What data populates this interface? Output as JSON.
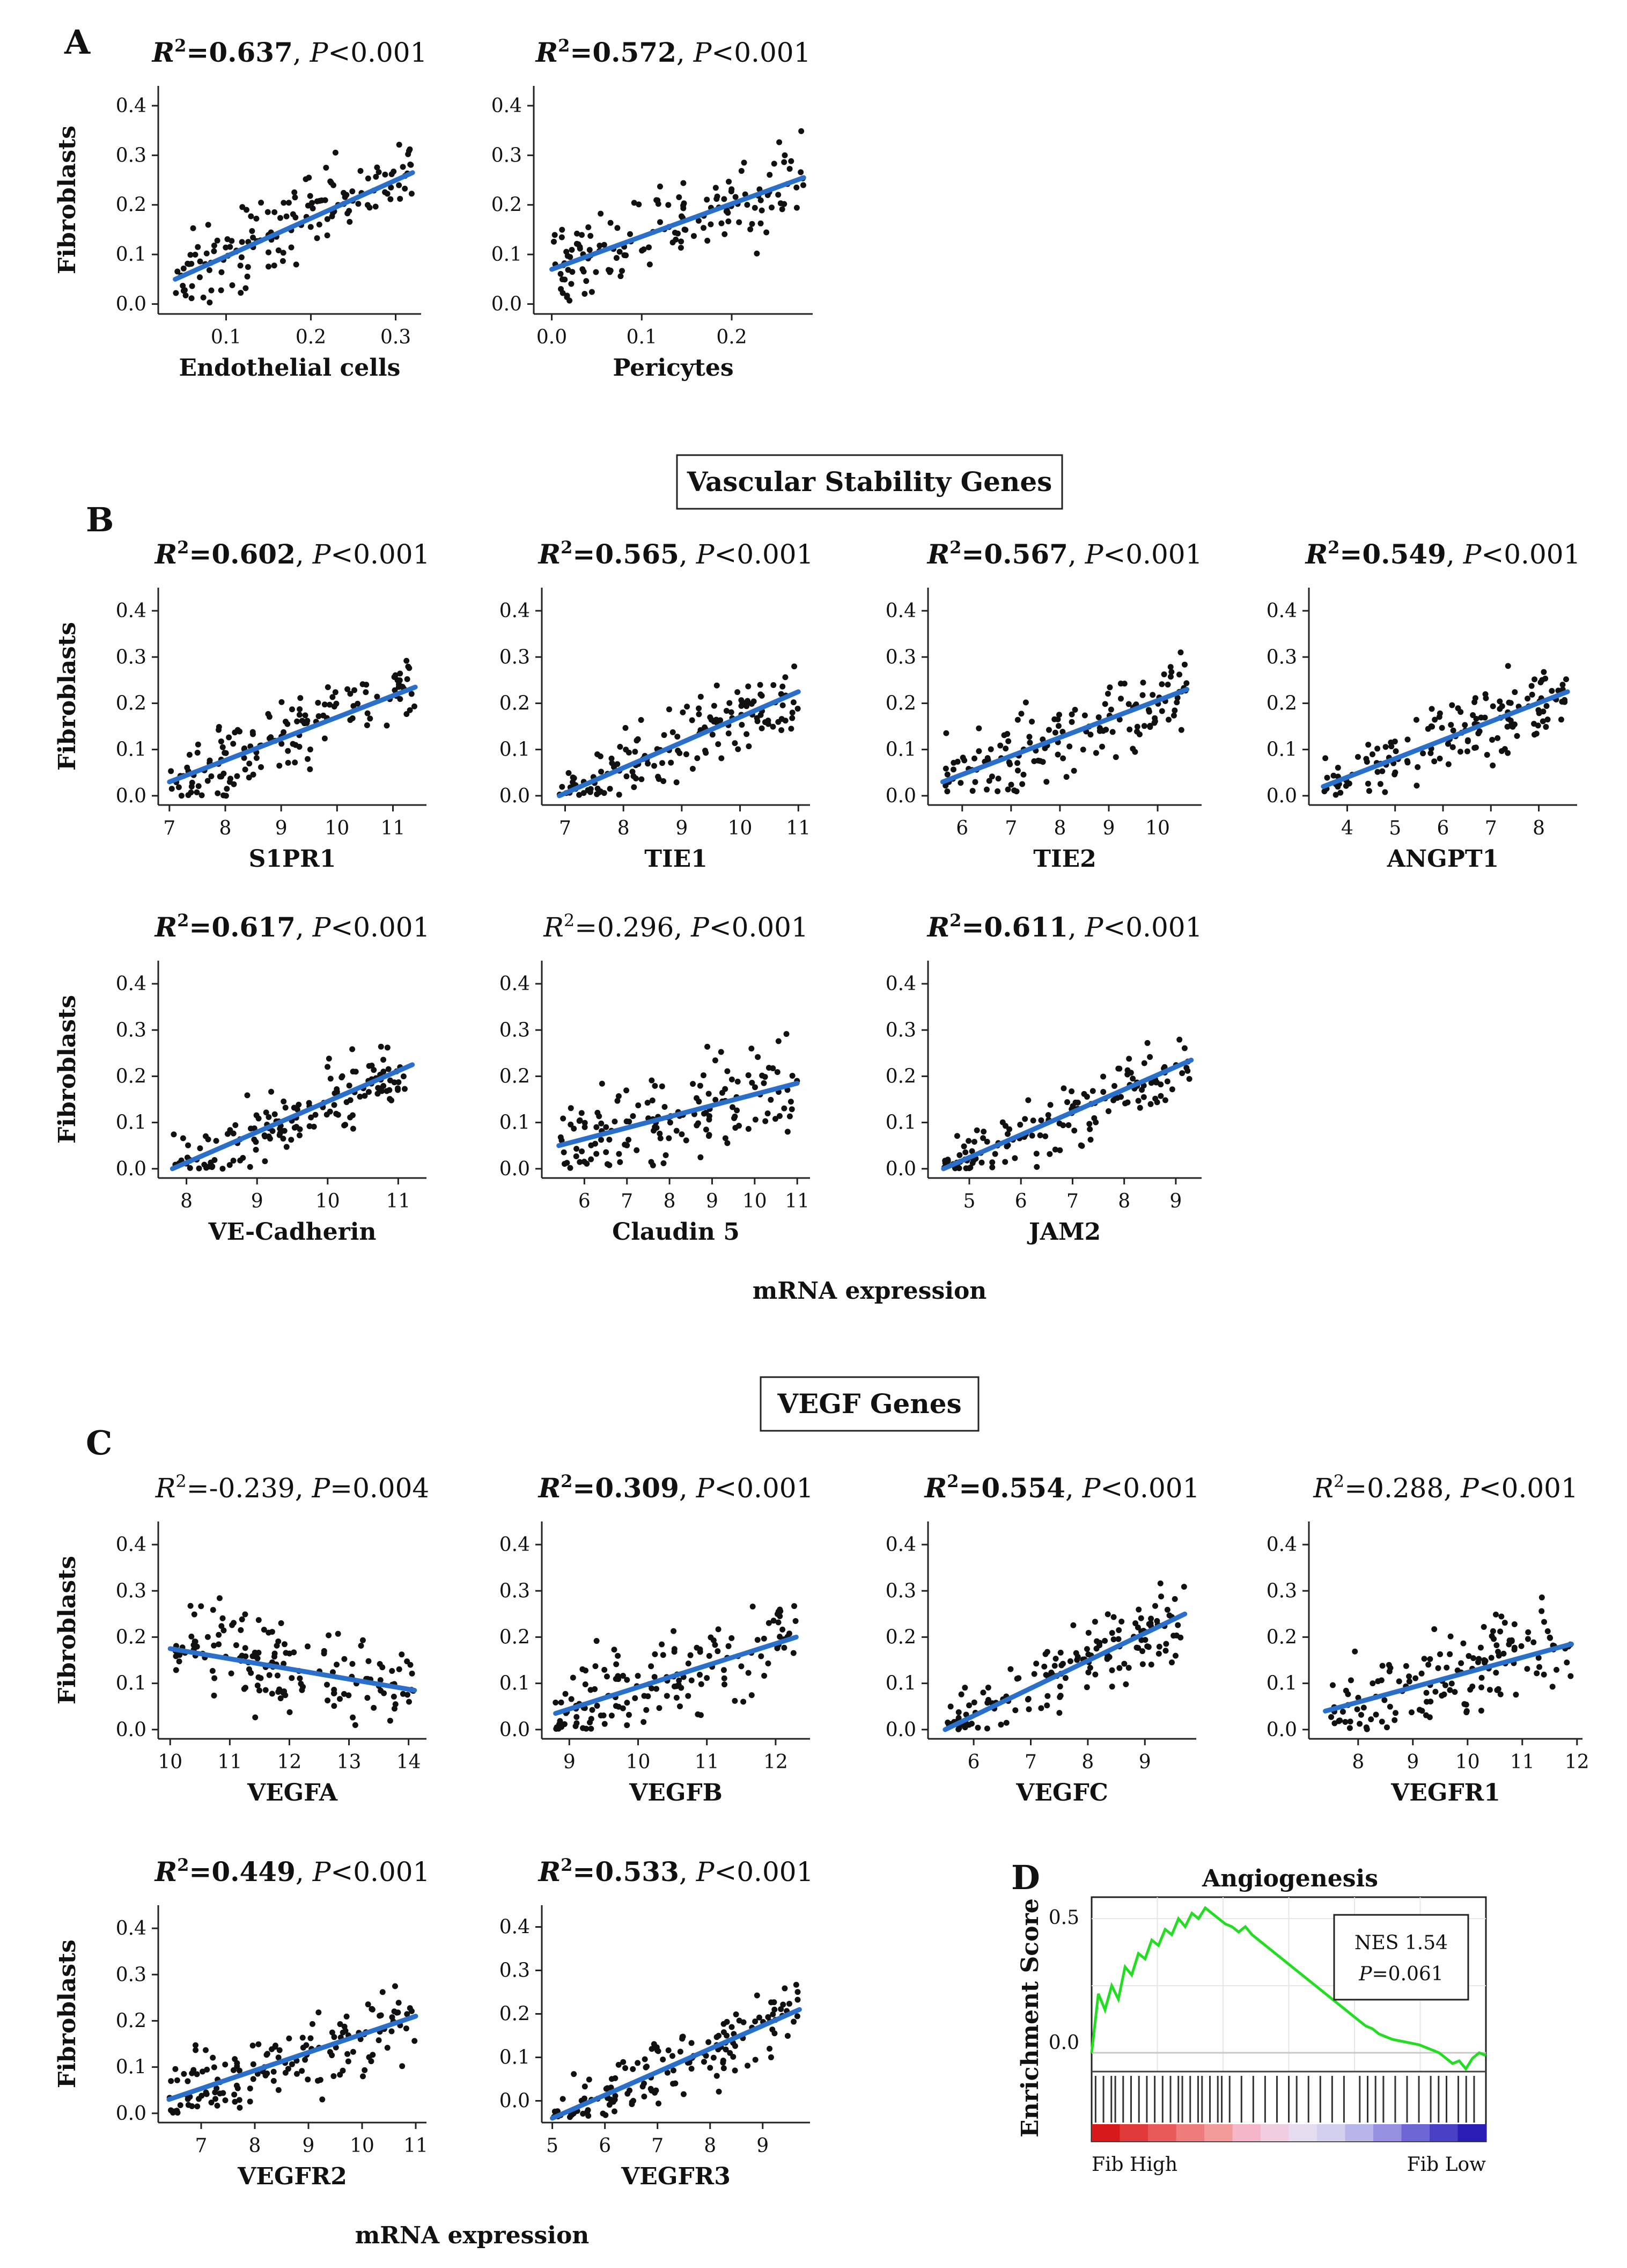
{
  "panel_labels": {
    "a": "A",
    "b": "B",
    "c": "C",
    "d": "D"
  },
  "section_titles": {
    "b": "Vascular Stability Genes",
    "c": "VEGF Genes"
  },
  "common_labels": {
    "y": "Fibroblasts",
    "x": "mRNA expression"
  },
  "chart_data": [
    {
      "id": "p-endothelial",
      "panel": "A",
      "type": "scatter",
      "title": {
        "prefix": "R",
        "sup": "2",
        "eq": "=",
        "r2": "0.637",
        "bold": true,
        "p_op": "<",
        "p": "0.001"
      },
      "xlabel": "Endothelial cells",
      "ylabel": "Fibroblasts",
      "xlim": [
        0.02,
        0.33
      ],
      "ylim": [
        -0.02,
        0.44
      ],
      "xticks": [
        0.1,
        0.2,
        0.3
      ],
      "yticks": [
        0.0,
        0.1,
        0.2,
        0.3,
        0.4
      ],
      "xticklabels": [
        "0.1",
        "0.2",
        "0.3"
      ],
      "yticklabels": [
        "0.0",
        "0.1",
        "0.2",
        "0.3",
        "0.4"
      ],
      "fit": [
        [
          0.04,
          0.05
        ],
        [
          0.32,
          0.265
        ]
      ],
      "xrange": [
        0.04,
        0.32
      ],
      "yrange": [
        0.0,
        0.44
      ],
      "n": 150,
      "spread": 0.05,
      "seed": 11
    },
    {
      "id": "p-pericytes",
      "panel": "A",
      "type": "scatter",
      "title": {
        "prefix": "R",
        "sup": "2",
        "eq": "=",
        "r2": "0.572",
        "bold": true,
        "p_op": "<",
        "p": "0.001"
      },
      "xlabel": "Pericytes",
      "ylabel": "",
      "xlim": [
        -0.02,
        0.29
      ],
      "ylim": [
        -0.02,
        0.44
      ],
      "xticks": [
        0.0,
        0.1,
        0.2
      ],
      "yticks": [
        0.0,
        0.1,
        0.2,
        0.3,
        0.4
      ],
      "xticklabels": [
        "0.0",
        "0.1",
        "0.2"
      ],
      "yticklabels": [
        "0.0",
        "0.1",
        "0.2",
        "0.3",
        "0.4"
      ],
      "fit": [
        [
          0.0,
          0.07
        ],
        [
          0.28,
          0.255
        ]
      ],
      "xrange": [
        0.0,
        0.28
      ],
      "yrange": [
        0.0,
        0.44
      ],
      "n": 150,
      "spread": 0.055,
      "seed": 23
    },
    {
      "id": "p-s1pr1",
      "panel": "B",
      "type": "scatter",
      "title": {
        "prefix": "R",
        "sup": "2",
        "eq": "=",
        "r2": "0.602",
        "bold": true,
        "p_op": "<",
        "p": "0.001"
      },
      "xlabel": "S1PR1",
      "ylabel": "Fibroblasts",
      "xlim": [
        6.8,
        11.6
      ],
      "ylim": [
        -0.02,
        0.45
      ],
      "xticks": [
        7,
        8,
        9,
        10,
        11
      ],
      "yticks": [
        0.0,
        0.1,
        0.2,
        0.3,
        0.4
      ],
      "xticklabels": [
        "7",
        "8",
        "9",
        "10",
        "11"
      ],
      "yticklabels": [
        "0.0",
        "0.1",
        "0.2",
        "0.3",
        "0.4"
      ],
      "fit": [
        [
          7.0,
          0.03
        ],
        [
          11.4,
          0.235
        ]
      ],
      "xrange": [
        7.0,
        11.4
      ],
      "yrange": [
        0.0,
        0.44
      ],
      "n": 150,
      "spread": 0.05,
      "seed": 31
    },
    {
      "id": "p-tie1",
      "panel": "B",
      "type": "scatter",
      "title": {
        "prefix": "R",
        "sup": "2",
        "eq": "=",
        "r2": "0.565",
        "bold": true,
        "p_op": "<",
        "p": "0.001"
      },
      "xlabel": "TIE1",
      "ylabel": "",
      "xlim": [
        6.6,
        11.2
      ],
      "ylim": [
        -0.02,
        0.45
      ],
      "xticks": [
        7,
        8,
        9,
        10,
        11
      ],
      "yticks": [
        0.0,
        0.1,
        0.2,
        0.3,
        0.4
      ],
      "xticklabels": [
        "7",
        "8",
        "9",
        "10",
        "11"
      ],
      "yticklabels": [
        "0.0",
        "0.1",
        "0.2",
        "0.3",
        "0.4"
      ],
      "fit": [
        [
          6.9,
          0.0
        ],
        [
          11.0,
          0.225
        ]
      ],
      "xrange": [
        6.9,
        11.0
      ],
      "yrange": [
        0.0,
        0.44
      ],
      "n": 150,
      "spread": 0.05,
      "seed": 37
    },
    {
      "id": "p-tie2",
      "panel": "B",
      "type": "scatter",
      "title": {
        "prefix": "R",
        "sup": "2",
        "eq": "=",
        "r2": "0.567",
        "bold": true,
        "p_op": "<",
        "p": "0.001"
      },
      "xlabel": "TIE2",
      "ylabel": "",
      "xlim": [
        5.3,
        10.9
      ],
      "ylim": [
        -0.02,
        0.45
      ],
      "xticks": [
        6,
        7,
        8,
        9,
        10
      ],
      "yticks": [
        0.0,
        0.1,
        0.2,
        0.3,
        0.4
      ],
      "xticklabels": [
        "6",
        "7",
        "8",
        "9",
        "10"
      ],
      "yticklabels": [
        "0.0",
        "0.1",
        "0.2",
        "0.3",
        "0.4"
      ],
      "fit": [
        [
          5.6,
          0.03
        ],
        [
          10.6,
          0.23
        ]
      ],
      "xrange": [
        5.6,
        10.6
      ],
      "yrange": [
        0.0,
        0.44
      ],
      "n": 150,
      "spread": 0.055,
      "seed": 41
    },
    {
      "id": "p-angpt1",
      "panel": "B",
      "type": "scatter",
      "title": {
        "prefix": "R",
        "sup": "2",
        "eq": "=",
        "r2": "0.549",
        "bold": true,
        "p_op": "<",
        "p": "0.001"
      },
      "xlabel": "ANGPT1",
      "ylabel": "",
      "xlim": [
        3.2,
        8.8
      ],
      "ylim": [
        -0.02,
        0.45
      ],
      "xticks": [
        4,
        5,
        6,
        7,
        8
      ],
      "yticks": [
        0.0,
        0.1,
        0.2,
        0.3,
        0.4
      ],
      "xticklabels": [
        "4",
        "5",
        "6",
        "7",
        "8"
      ],
      "yticklabels": [
        "0.0",
        "0.1",
        "0.2",
        "0.3",
        "0.4"
      ],
      "fit": [
        [
          3.5,
          0.02
        ],
        [
          8.6,
          0.225
        ]
      ],
      "xrange": [
        3.5,
        8.6
      ],
      "yrange": [
        0.0,
        0.44
      ],
      "n": 150,
      "spread": 0.05,
      "seed": 43
    },
    {
      "id": "p-vecadherin",
      "panel": "B",
      "type": "scatter",
      "title": {
        "prefix": "R",
        "sup": "2",
        "eq": "=",
        "r2": "0.617",
        "bold": true,
        "p_op": "<",
        "p": "0.001"
      },
      "xlabel": "VE-Cadherin",
      "ylabel": "Fibroblasts",
      "xlim": [
        7.6,
        11.4
      ],
      "ylim": [
        -0.02,
        0.45
      ],
      "xticks": [
        8,
        9,
        10,
        11
      ],
      "yticks": [
        0.0,
        0.1,
        0.2,
        0.3,
        0.4
      ],
      "xticklabels": [
        "8",
        "9",
        "10",
        "11"
      ],
      "yticklabels": [
        "0.0",
        "0.1",
        "0.2",
        "0.3",
        "0.4"
      ],
      "fit": [
        [
          7.8,
          0.0
        ],
        [
          11.2,
          0.225
        ]
      ],
      "xrange": [
        7.8,
        11.2
      ],
      "yrange": [
        0.0,
        0.44
      ],
      "n": 150,
      "spread": 0.045,
      "seed": 47
    },
    {
      "id": "p-claudin5",
      "panel": "B",
      "type": "scatter",
      "title": {
        "prefix": "R",
        "sup": "2",
        "eq": "=",
        "r2": "0.296",
        "bold": false,
        "p_op": "<",
        "p": "0.001"
      },
      "xlabel": "Claudin 5",
      "ylabel": "",
      "xlim": [
        5.0,
        11.3
      ],
      "ylim": [
        -0.02,
        0.45
      ],
      "xticks": [
        6,
        7,
        8,
        9,
        10,
        11
      ],
      "yticks": [
        0.0,
        0.1,
        0.2,
        0.3,
        0.4
      ],
      "xticklabels": [
        "6",
        "7",
        "8",
        "9",
        "10",
        "11"
      ],
      "yticklabels": [
        "0.0",
        "0.1",
        "0.2",
        "0.3",
        "0.4"
      ],
      "fit": [
        [
          5.4,
          0.05
        ],
        [
          11.0,
          0.185
        ]
      ],
      "xrange": [
        5.4,
        11.0
      ],
      "yrange": [
        0.0,
        0.44
      ],
      "n": 150,
      "spread": 0.065,
      "seed": 53
    },
    {
      "id": "p-jam2",
      "panel": "B",
      "type": "scatter",
      "title": {
        "prefix": "R",
        "sup": "2",
        "eq": "=",
        "r2": "0.611",
        "bold": true,
        "p_op": "<",
        "p": "0.001"
      },
      "xlabel": "JAM2",
      "ylabel": "",
      "xlim": [
        4.2,
        9.5
      ],
      "ylim": [
        -0.02,
        0.45
      ],
      "xticks": [
        5,
        6,
        7,
        8,
        9
      ],
      "yticks": [
        0.0,
        0.1,
        0.2,
        0.3,
        0.4
      ],
      "xticklabels": [
        "5",
        "6",
        "7",
        "8",
        "9"
      ],
      "yticklabels": [
        "0.0",
        "0.1",
        "0.2",
        "0.3",
        "0.4"
      ],
      "fit": [
        [
          4.5,
          0.0
        ],
        [
          9.3,
          0.235
        ]
      ],
      "xrange": [
        4.5,
        9.3
      ],
      "yrange": [
        0.0,
        0.44
      ],
      "n": 150,
      "spread": 0.045,
      "seed": 59
    },
    {
      "id": "p-vegfa",
      "panel": "C",
      "type": "scatter",
      "title": {
        "prefix": "R",
        "sup": "2",
        "eq": "=",
        "r2": "-0.239",
        "bold": false,
        "p_op": "=",
        "p": "0.004"
      },
      "xlabel": "VEGFA",
      "ylabel": "Fibroblasts",
      "xlim": [
        9.8,
        14.3
      ],
      "ylim": [
        -0.02,
        0.45
      ],
      "xticks": [
        10,
        11,
        12,
        13,
        14
      ],
      "yticks": [
        0.0,
        0.1,
        0.2,
        0.3,
        0.4
      ],
      "xticklabels": [
        "10",
        "11",
        "12",
        "13",
        "14"
      ],
      "yticklabels": [
        "0.0",
        "0.1",
        "0.2",
        "0.3",
        "0.4"
      ],
      "fit": [
        [
          10.0,
          0.175
        ],
        [
          14.1,
          0.085
        ]
      ],
      "xrange": [
        10.0,
        14.1
      ],
      "yrange": [
        0.0,
        0.44
      ],
      "n": 150,
      "spread": 0.06,
      "seed": 61
    },
    {
      "id": "p-vegfb",
      "panel": "C",
      "type": "scatter",
      "title": {
        "prefix": "R",
        "sup": "2",
        "eq": "=",
        "r2": "0.309",
        "bold": true,
        "p_op": "<",
        "p": "0.001"
      },
      "xlabel": "VEGFB",
      "ylabel": "",
      "xlim": [
        8.6,
        12.5
      ],
      "ylim": [
        -0.02,
        0.45
      ],
      "xticks": [
        9,
        10,
        11,
        12
      ],
      "yticks": [
        0.0,
        0.1,
        0.2,
        0.3,
        0.4
      ],
      "xticklabels": [
        "9",
        "10",
        "11",
        "12"
      ],
      "yticklabels": [
        "0.0",
        "0.1",
        "0.2",
        "0.3",
        "0.4"
      ],
      "fit": [
        [
          8.8,
          0.035
        ],
        [
          12.3,
          0.2
        ]
      ],
      "xrange": [
        8.8,
        12.3
      ],
      "yrange": [
        0.0,
        0.44
      ],
      "n": 150,
      "spread": 0.06,
      "seed": 67
    },
    {
      "id": "p-vegfc",
      "panel": "C",
      "type": "scatter",
      "title": {
        "prefix": "R",
        "sup": "2",
        "eq": "=",
        "r2": "0.554",
        "bold": true,
        "p_op": "<",
        "p": "0.001"
      },
      "xlabel": "VEGFC",
      "ylabel": "",
      "xlim": [
        5.2,
        9.9
      ],
      "ylim": [
        -0.02,
        0.45
      ],
      "xticks": [
        6,
        7,
        8,
        9
      ],
      "yticks": [
        0.0,
        0.1,
        0.2,
        0.3,
        0.4
      ],
      "xticklabels": [
        "6",
        "7",
        "8",
        "9"
      ],
      "yticklabels": [
        "0.0",
        "0.1",
        "0.2",
        "0.3",
        "0.4"
      ],
      "fit": [
        [
          5.5,
          0.0
        ],
        [
          9.7,
          0.25
        ]
      ],
      "xrange": [
        5.5,
        9.7
      ],
      "yrange": [
        0.0,
        0.44
      ],
      "n": 150,
      "spread": 0.05,
      "seed": 71
    },
    {
      "id": "p-vegfr1",
      "panel": "C",
      "type": "scatter",
      "title": {
        "prefix": "R",
        "sup": "2",
        "eq": "=",
        "r2": "0.288",
        "bold": false,
        "p_op": "<",
        "p": "0.001"
      },
      "xlabel": "VEGFR1",
      "ylabel": "",
      "xlim": [
        7.1,
        12.1
      ],
      "ylim": [
        -0.02,
        0.45
      ],
      "xticks": [
        8,
        9,
        10,
        11,
        12
      ],
      "yticks": [
        0.0,
        0.1,
        0.2,
        0.3,
        0.4
      ],
      "xticklabels": [
        "8",
        "9",
        "10",
        "11",
        "12"
      ],
      "yticklabels": [
        "0.0",
        "0.1",
        "0.2",
        "0.3",
        "0.4"
      ],
      "fit": [
        [
          7.4,
          0.04
        ],
        [
          11.9,
          0.185
        ]
      ],
      "xrange": [
        7.4,
        11.9
      ],
      "yrange": [
        0.0,
        0.44
      ],
      "n": 150,
      "spread": 0.06,
      "seed": 73
    },
    {
      "id": "p-vegfr2",
      "panel": "C",
      "type": "scatter",
      "title": {
        "prefix": "R",
        "sup": "2",
        "eq": "=",
        "r2": "0.449",
        "bold": true,
        "p_op": "<",
        "p": "0.001"
      },
      "xlabel": "VEGFR2",
      "ylabel": "Fibroblasts",
      "xlim": [
        6.2,
        11.2
      ],
      "ylim": [
        -0.02,
        0.45
      ],
      "xticks": [
        7,
        8,
        9,
        10,
        11
      ],
      "yticks": [
        0.0,
        0.1,
        0.2,
        0.3,
        0.4
      ],
      "xticklabels": [
        "7",
        "8",
        "9",
        "10",
        "11"
      ],
      "yticklabels": [
        "0.0",
        "0.1",
        "0.2",
        "0.3",
        "0.4"
      ],
      "fit": [
        [
          6.4,
          0.03
        ],
        [
          11.0,
          0.21
        ]
      ],
      "xrange": [
        6.4,
        11.0
      ],
      "yrange": [
        0.0,
        0.44
      ],
      "n": 150,
      "spread": 0.055,
      "seed": 79
    },
    {
      "id": "p-vegfr3",
      "panel": "C",
      "type": "scatter",
      "title": {
        "prefix": "R",
        "sup": "2",
        "eq": "=",
        "r2": "0.533",
        "bold": true,
        "p_op": "<",
        "p": "0.001"
      },
      "xlabel": "VEGFR3",
      "ylabel": "",
      "xlim": [
        4.8,
        9.9
      ],
      "ylim": [
        -0.05,
        0.45
      ],
      "xticks": [
        5,
        6,
        7,
        8,
        9
      ],
      "yticks": [
        0.0,
        0.1,
        0.2,
        0.3,
        0.4
      ],
      "xticklabels": [
        "5",
        "6",
        "7",
        "8",
        "9"
      ],
      "yticklabels": [
        "0.0",
        "0.1",
        "0.2",
        "0.3",
        "0.4"
      ],
      "fit": [
        [
          5.0,
          -0.04
        ],
        [
          9.7,
          0.21
        ]
      ],
      "xrange": [
        5.0,
        9.7
      ],
      "yrange": [
        -0.04,
        0.44
      ],
      "n": 150,
      "spread": 0.05,
      "seed": 83
    }
  ],
  "gsea": {
    "type": "line",
    "title": "Angiogenesis",
    "ylabel": "Enrichment Score",
    "yticklabels": [
      "0.5",
      "0.0"
    ],
    "ylim": [
      -0.07,
      0.58
    ],
    "nes_label": "NES 1.54",
    "p_prefix": "P",
    "p_value": "=0.061",
    "x_left_label": "Fib High",
    "x_right_label": "Fib Low",
    "line_color": "#22dd22",
    "es_curve": [
      0.0,
      0.22,
      0.16,
      0.25,
      0.2,
      0.32,
      0.29,
      0.37,
      0.35,
      0.42,
      0.4,
      0.46,
      0.44,
      0.5,
      0.47,
      0.52,
      0.5,
      0.54,
      0.52,
      0.5,
      0.48,
      0.47,
      0.45,
      0.47,
      0.44,
      0.42,
      0.4,
      0.38,
      0.36,
      0.34,
      0.32,
      0.3,
      0.28,
      0.26,
      0.24,
      0.22,
      0.2,
      0.18,
      0.16,
      0.14,
      0.12,
      0.1,
      0.09,
      0.07,
      0.06,
      0.05,
      0.045,
      0.04,
      0.035,
      0.03,
      0.02,
      0.01,
      0.0,
      -0.02,
      -0.04,
      -0.03,
      -0.06,
      -0.02,
      0.0,
      -0.01
    ],
    "hit_positions": [
      0.01,
      0.03,
      0.05,
      0.06,
      0.08,
      0.1,
      0.12,
      0.14,
      0.16,
      0.18,
      0.2,
      0.22,
      0.23,
      0.25,
      0.27,
      0.28,
      0.3,
      0.32,
      0.33,
      0.35,
      0.38,
      0.41,
      0.44,
      0.47,
      0.5,
      0.52,
      0.55,
      0.58,
      0.61,
      0.64,
      0.68,
      0.7,
      0.72,
      0.74,
      0.77,
      0.8,
      0.83,
      0.86,
      0.88,
      0.9,
      0.93,
      0.95,
      0.97
    ]
  }
}
